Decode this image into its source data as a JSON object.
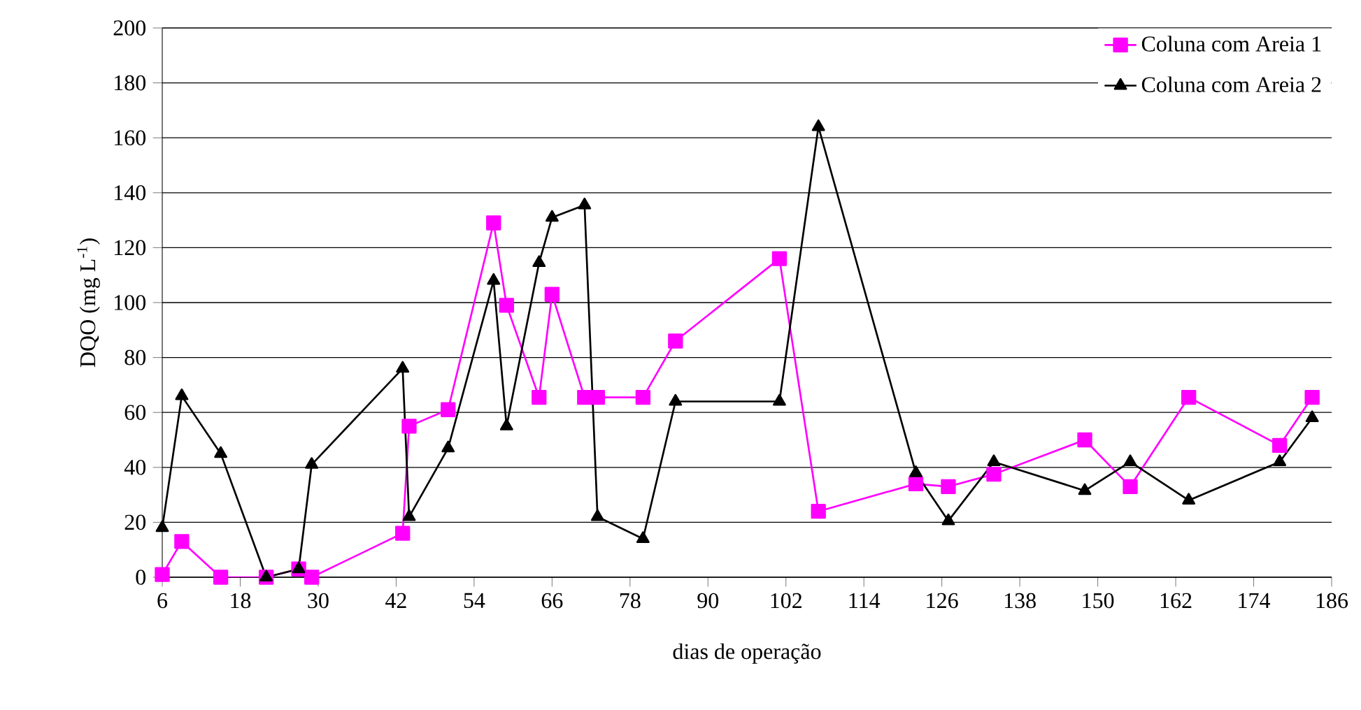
{
  "chart_data": {
    "type": "line",
    "xlabel": "dias de operação",
    "ylabel": "DQO (mg L$^{-1}$)",
    "xlim": [
      6,
      186
    ],
    "xticks": [
      6,
      18,
      30,
      42,
      54,
      66,
      78,
      90,
      102,
      114,
      126,
      138,
      150,
      162,
      174,
      186
    ],
    "ylim": [
      0,
      200
    ],
    "yticks": [
      0,
      20,
      40,
      60,
      80,
      100,
      120,
      140,
      160,
      180,
      200
    ],
    "grid": "y",
    "legend": "top right",
    "series": [
      {
        "name": "Coluna com Areia 1",
        "color": "#ff00ff",
        "marker": "square",
        "x": [
          6,
          9,
          15,
          22,
          27,
          29,
          43,
          44,
          50,
          57,
          59,
          64,
          66,
          71,
          73,
          80,
          85,
          101,
          107,
          122,
          127,
          134,
          148,
          155,
          164,
          178,
          183
        ],
        "values": [
          1,
          13,
          0,
          0,
          3,
          0,
          16,
          55,
          61,
          129,
          99,
          65.5,
          103,
          65.5,
          65.5,
          65.5,
          86,
          116,
          24,
          34,
          33,
          37.5,
          50,
          33,
          65.5,
          48,
          65.5
        ]
      },
      {
        "name": "Coluna com Areia 2",
        "color": "#000000",
        "marker": "triangle",
        "x": [
          6,
          9,
          15,
          22,
          27,
          29,
          43,
          44,
          50,
          57,
          59,
          64,
          66,
          71,
          73,
          80,
          85,
          101,
          107,
          122,
          127,
          134,
          148,
          155,
          164,
          178,
          183
        ],
        "values": [
          18,
          66,
          45,
          0,
          3,
          41,
          76,
          22,
          47,
          108,
          55,
          114.5,
          131,
          135.5,
          22,
          14,
          64,
          64,
          164,
          38,
          20.5,
          42,
          31.5,
          42,
          28,
          42,
          58
        ]
      }
    ]
  }
}
